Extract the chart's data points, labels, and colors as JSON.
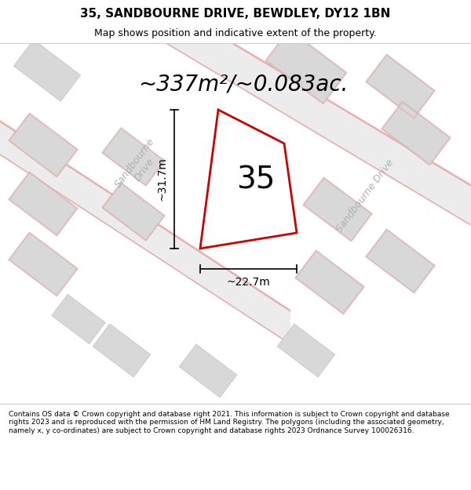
{
  "title": "35, SANDBOURNE DRIVE, BEWDLEY, DY12 1BN",
  "subtitle": "Map shows position and indicative extent of the property.",
  "area_text": "~337m²/~0.083ac.",
  "dim_h": "~31.7m",
  "dim_w": "~22.7m",
  "number_label": "35",
  "footer": "Contains OS data © Crown copyright and database right 2021. This information is subject to Crown copyright and database rights 2023 and is reproduced with the permission of HM Land Registry. The polygons (including the associated geometry, namely x, y co-ordinates) are subject to Crown copyright and database rights 2023 Ordnance Survey 100026316.",
  "bg_color": "#ffffff",
  "map_bg": "#ffffff",
  "plot_color": "#cc0000",
  "road_fill": "#ececec",
  "road_line": "#e8b0b0",
  "building_color": "#d8d8d8",
  "road_label_color": "#b0b0b0",
  "title_fontsize": 11,
  "subtitle_fontsize": 9,
  "area_fontsize": 20,
  "number_fontsize": 28,
  "dim_fontsize": 10,
  "road_label_fontsize": 9,
  "footer_fontsize": 6.5
}
